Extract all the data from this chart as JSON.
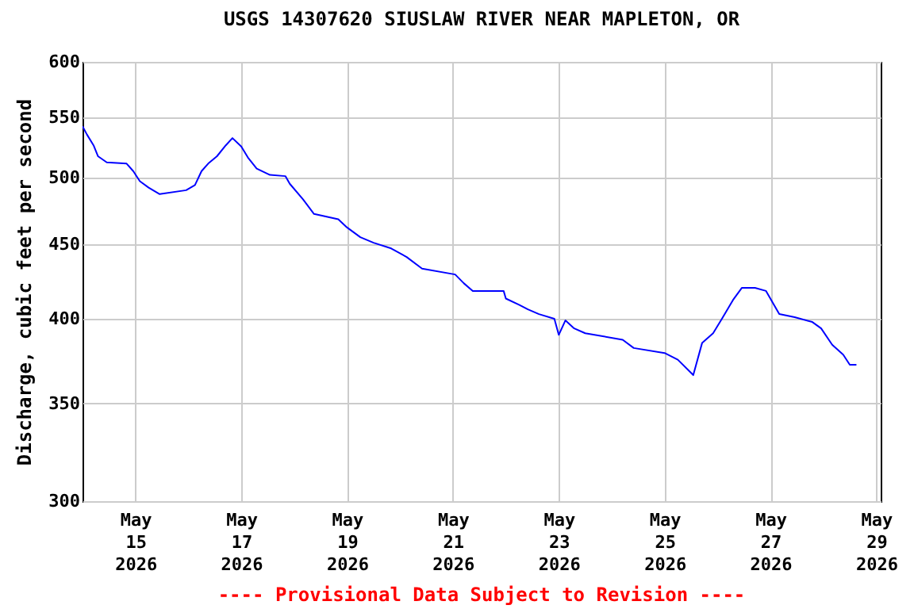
{
  "chart_data": {
    "type": "line",
    "title": "USGS 14307620 SIUSLAW RIVER NEAR MAPLETON, OR",
    "ylabel": "Discharge, cubic feet per second",
    "annotations": [
      "---- Provisional Data Subject to Revision ----"
    ],
    "x": [
      "2026-05-14T00:00",
      "2026-05-14T02:00",
      "2026-05-14T05:00",
      "2026-05-14T07:00",
      "2026-05-14T11:00",
      "2026-05-14T20:00",
      "2026-05-14T23:00",
      "2026-05-15T02:00",
      "2026-05-15T06:00",
      "2026-05-15T11:00",
      "2026-05-15T23:00",
      "2026-05-16T03:00",
      "2026-05-16T06:00",
      "2026-05-16T09:00",
      "2026-05-16T13:00",
      "2026-05-16T17:00",
      "2026-05-16T20:00",
      "2026-05-17T00:00",
      "2026-05-17T03:00",
      "2026-05-17T07:00",
      "2026-05-17T13:00",
      "2026-05-17T20:00",
      "2026-05-17T22:00",
      "2026-05-18T04:00",
      "2026-05-18T09:00",
      "2026-05-18T20:00",
      "2026-05-19T00:00",
      "2026-05-19T06:00",
      "2026-05-19T12:00",
      "2026-05-19T20:00",
      "2026-05-20T03:00",
      "2026-05-20T10:00",
      "2026-05-21T01:00",
      "2026-05-21T05:00",
      "2026-05-21T09:00",
      "2026-05-21T23:00",
      "2026-05-22T00:00",
      "2026-05-22T06:00",
      "2026-05-22T10:00",
      "2026-05-22T15:00",
      "2026-05-22T22:00",
      "2026-05-23T00:00",
      "2026-05-23T03:00",
      "2026-05-23T07:00",
      "2026-05-23T12:00",
      "2026-05-24T05:00",
      "2026-05-24T10:00",
      "2026-05-25T00:00",
      "2026-05-25T06:00",
      "2026-05-25T13:00",
      "2026-05-25T17:00",
      "2026-05-25T22:00",
      "2026-05-26T02:00",
      "2026-05-26T07:00",
      "2026-05-26T11:00",
      "2026-05-26T17:00",
      "2026-05-26T22:00",
      "2026-05-27T04:00",
      "2026-05-27T11:00",
      "2026-05-27T19:00",
      "2026-05-27T23:00",
      "2026-05-28T04:00",
      "2026-05-28T09:00",
      "2026-05-28T12:00",
      "2026-05-28T15:00"
    ],
    "series": [
      {
        "color": "#0000ff",
        "values": [
          542,
          535,
          526,
          517,
          512,
          511,
          505,
          497,
          492,
          487,
          490,
          494,
          505,
          511,
          517,
          526,
          532,
          525,
          516,
          507,
          502,
          501,
          495,
          483,
          472,
          468,
          462,
          455,
          451,
          447,
          441,
          433,
          429,
          423,
          418,
          418,
          413,
          409,
          406,
          403,
          400,
          390,
          399,
          394,
          391,
          387,
          382,
          379,
          375,
          366,
          385,
          391,
          400,
          412,
          420,
          420,
          418,
          403,
          401,
          398,
          394,
          384,
          378,
          372,
          372
        ]
      }
    ],
    "xlim": [
      "2026-05-14T00:00",
      "2026-05-29T02:00"
    ],
    "xticks": [
      {
        "value": "2026-05-15",
        "label": "May 15 2026"
      },
      {
        "value": "2026-05-17",
        "label": "May 17 2026"
      },
      {
        "value": "2026-05-19",
        "label": "May 19 2026"
      },
      {
        "value": "2026-05-21",
        "label": "May 21 2026"
      },
      {
        "value": "2026-05-23",
        "label": "May 23 2026"
      },
      {
        "value": "2026-05-25",
        "label": "May 25 2026"
      },
      {
        "value": "2026-05-27",
        "label": "May 27 2026"
      },
      {
        "value": "2026-05-29",
        "label": "May 29 2026"
      }
    ],
    "ylim": [
      300,
      600
    ],
    "yticks": [
      300,
      350,
      400,
      450,
      500,
      550,
      600
    ],
    "log": "y",
    "grid": true,
    "legend": false,
    "line_style": "solid",
    "marker": "none"
  }
}
